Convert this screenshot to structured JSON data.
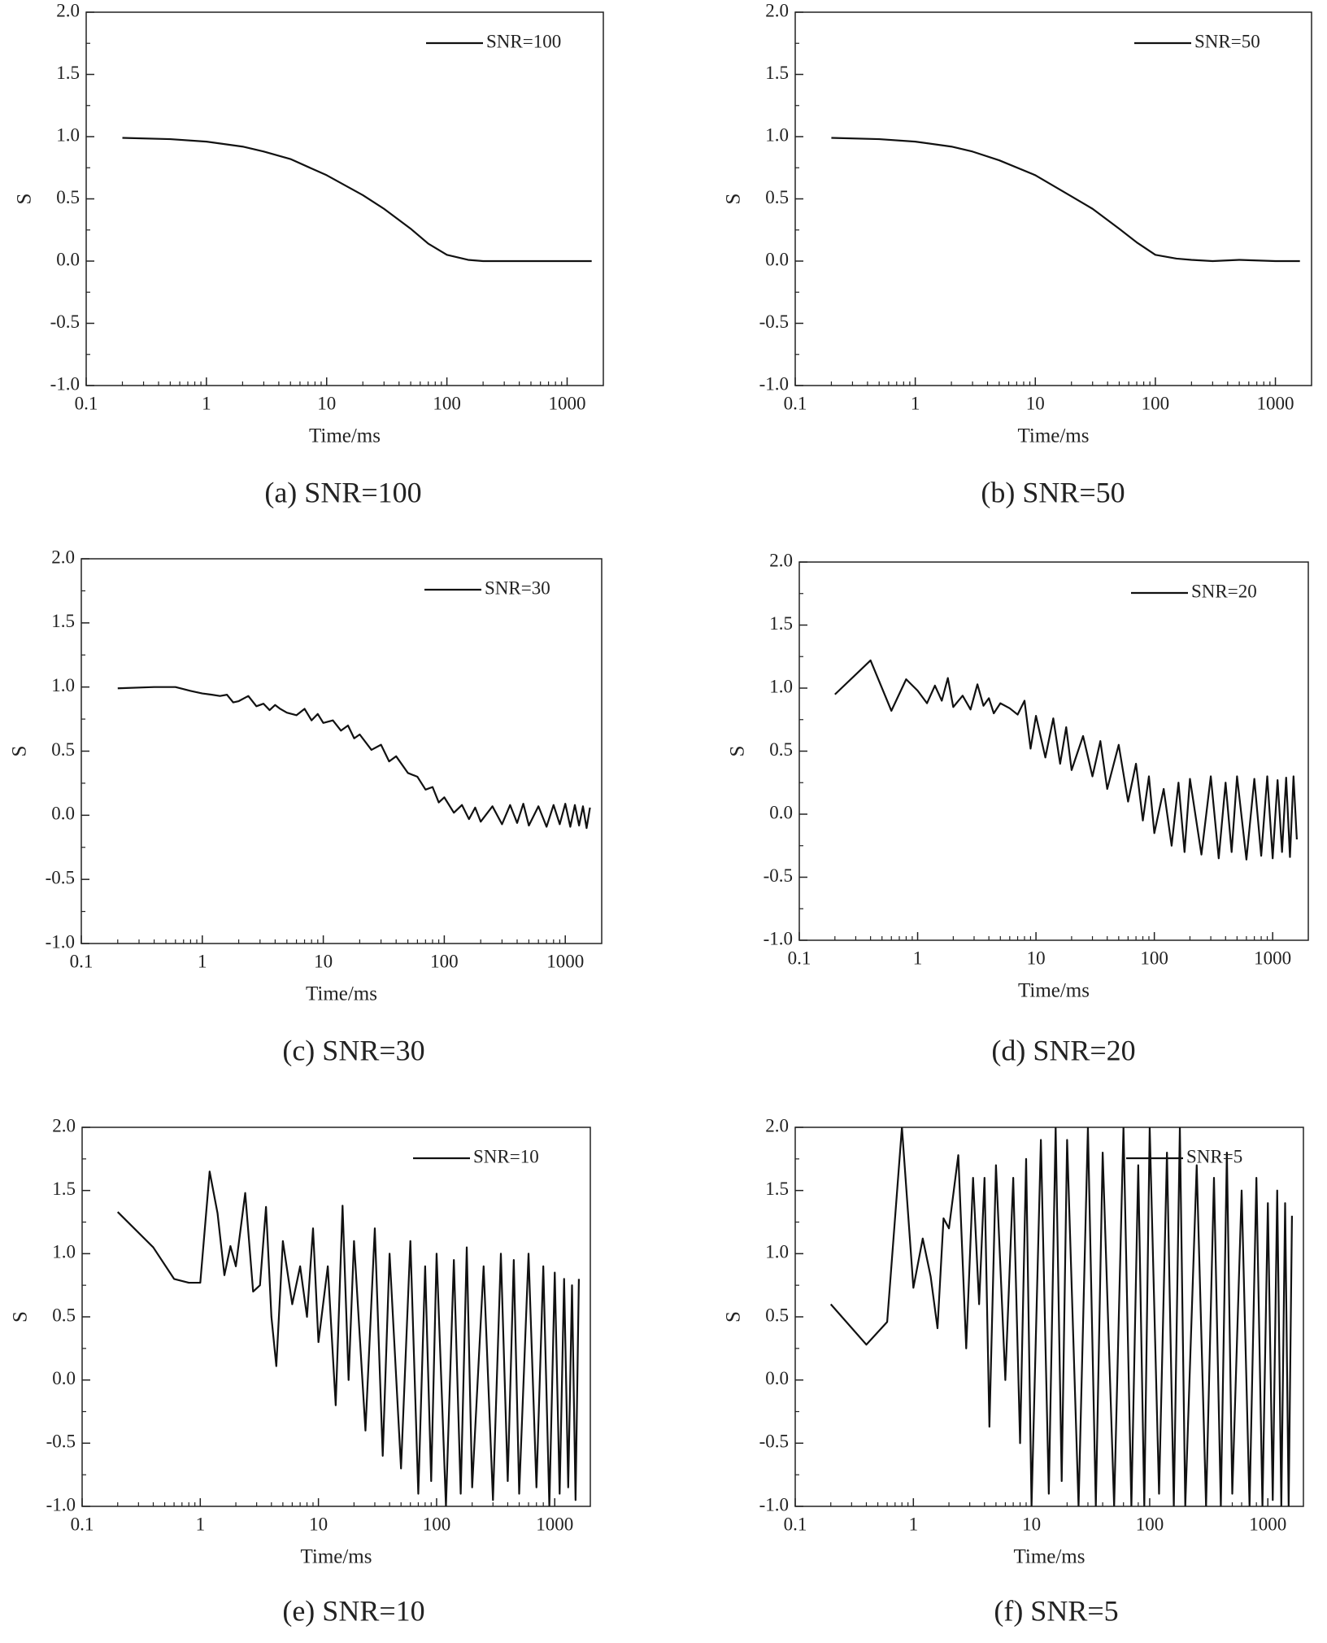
{
  "chart_data": [
    {
      "type": "line",
      "caption": "(a) SNR=100",
      "xlabel": "Time/ms",
      "ylabel": "S",
      "log_x": true,
      "legend": "upper right",
      "xlim": [
        0.1,
        2000
      ],
      "xticks": [
        0.1,
        1,
        10,
        100,
        1000
      ],
      "ylim": [
        -1,
        2
      ],
      "yticks": [
        {
          "value": -1,
          "label": "-1.0"
        },
        {
          "value": -0.5,
          "label": "-0.5"
        },
        {
          "value": 0,
          "label": "0.0"
        },
        {
          "value": 0.5,
          "label": "0.5"
        },
        {
          "value": 1,
          "label": "1.0"
        },
        {
          "value": 1.5,
          "label": "1.5"
        },
        {
          "value": 2,
          "label": "2.0"
        }
      ],
      "x": [
        0.2,
        0.5,
        1,
        2,
        3,
        5,
        10,
        20,
        30,
        50,
        70,
        100,
        150,
        200,
        300,
        500,
        1000,
        1600
      ],
      "series": [
        {
          "name": "SNR=100",
          "color": "#111111",
          "values": [
            0.99,
            0.98,
            0.96,
            0.92,
            0.88,
            0.82,
            0.69,
            0.53,
            0.42,
            0.26,
            0.14,
            0.05,
            0.01,
            0,
            0,
            0,
            0,
            0
          ]
        }
      ]
    },
    {
      "type": "line",
      "caption": "(b) SNR=50",
      "xlabel": "Time/ms",
      "ylabel": "S",
      "log_x": true,
      "legend": "upper right",
      "xlim": [
        0.1,
        2000
      ],
      "xticks": [
        0.1,
        1,
        10,
        100,
        1000
      ],
      "ylim": [
        -1,
        2
      ],
      "yticks": [
        {
          "value": -1,
          "label": "-1.0"
        },
        {
          "value": -0.5,
          "label": "-0.5"
        },
        {
          "value": 0,
          "label": "0.0"
        },
        {
          "value": 0.5,
          "label": "0.5"
        },
        {
          "value": 1,
          "label": "1.0"
        },
        {
          "value": 1.5,
          "label": "1.5"
        },
        {
          "value": 2,
          "label": "2.0"
        }
      ],
      "x": [
        0.2,
        0.5,
        1,
        2,
        3,
        5,
        10,
        20,
        30,
        50,
        70,
        100,
        150,
        200,
        300,
        500,
        1000,
        1600
      ],
      "series": [
        {
          "name": "SNR=50",
          "color": "#111111",
          "values": [
            0.99,
            0.98,
            0.96,
            0.92,
            0.88,
            0.81,
            0.69,
            0.52,
            0.42,
            0.26,
            0.15,
            0.05,
            0.02,
            0.01,
            0,
            0.01,
            0,
            0
          ]
        }
      ]
    },
    {
      "type": "line",
      "caption": "(c) SNR=30",
      "xlabel": "Time/ms",
      "ylabel": "S",
      "log_x": true,
      "legend": "upper right",
      "xlim": [
        0.1,
        2000
      ],
      "xticks": [
        0.1,
        1,
        10,
        100,
        1000
      ],
      "ylim": [
        -1,
        2
      ],
      "yticks": [
        {
          "value": -1,
          "label": "-1.0"
        },
        {
          "value": -0.5,
          "label": "-0.5"
        },
        {
          "value": 0,
          "label": "0.0"
        },
        {
          "value": 0.5,
          "label": "0.5"
        },
        {
          "value": 1,
          "label": "1.0"
        },
        {
          "value": 1.5,
          "label": "1.5"
        },
        {
          "value": 2,
          "label": "2.0"
        }
      ],
      "x": [
        0.2,
        0.4,
        0.6,
        0.8,
        1,
        1.2,
        1.4,
        1.6,
        1.8,
        2,
        2.4,
        2.8,
        3.2,
        3.6,
        4,
        4.4,
        5,
        6,
        7,
        8,
        9,
        10,
        12,
        14,
        16,
        18,
        20,
        25,
        30,
        35,
        40,
        50,
        60,
        70,
        80,
        90,
        100,
        120,
        140,
        160,
        180,
        200,
        250,
        300,
        350,
        400,
        450,
        500,
        600,
        700,
        800,
        900,
        1000,
        1100,
        1200,
        1300,
        1400,
        1500,
        1600
      ],
      "series": [
        {
          "name": "SNR=30",
          "color": "#111111",
          "values": [
            0.99,
            1.0,
            1.0,
            0.97,
            0.95,
            0.94,
            0.93,
            0.94,
            0.88,
            0.89,
            0.93,
            0.85,
            0.87,
            0.82,
            0.86,
            0.83,
            0.8,
            0.78,
            0.83,
            0.74,
            0.79,
            0.72,
            0.74,
            0.66,
            0.7,
            0.6,
            0.63,
            0.51,
            0.55,
            0.42,
            0.46,
            0.33,
            0.3,
            0.2,
            0.22,
            0.1,
            0.14,
            0.02,
            0.08,
            -0.03,
            0.06,
            -0.05,
            0.07,
            -0.07,
            0.08,
            -0.06,
            0.09,
            -0.08,
            0.07,
            -0.09,
            0.08,
            -0.07,
            0.09,
            -0.09,
            0.08,
            -0.08,
            0.07,
            -0.1,
            0.06
          ]
        }
      ]
    },
    {
      "type": "line",
      "caption": "(d) SNR=20",
      "xlabel": "Time/ms",
      "ylabel": "S",
      "log_x": true,
      "legend": "upper right",
      "xlim": [
        0.1,
        2000
      ],
      "xticks": [
        0.1,
        1,
        10,
        100,
        1000
      ],
      "ylim": [
        -1,
        2
      ],
      "yticks": [
        {
          "value": -1,
          "label": "-1.0"
        },
        {
          "value": -0.5,
          "label": "-0.5"
        },
        {
          "value": 0,
          "label": "0.0"
        },
        {
          "value": 0.5,
          "label": "0.5"
        },
        {
          "value": 1,
          "label": "1.0"
        },
        {
          "value": 1.5,
          "label": "1.5"
        },
        {
          "value": 2,
          "label": "2.0"
        }
      ],
      "x": [
        0.2,
        0.4,
        0.6,
        0.8,
        1,
        1.2,
        1.4,
        1.6,
        1.8,
        2,
        2.4,
        2.8,
        3.2,
        3.6,
        4,
        4.4,
        5,
        6,
        7,
        8,
        9,
        10,
        12,
        14,
        16,
        18,
        20,
        25,
        30,
        35,
        40,
        50,
        60,
        70,
        80,
        90,
        100,
        120,
        140,
        160,
        180,
        200,
        250,
        300,
        350,
        400,
        450,
        500,
        600,
        700,
        800,
        900,
        1000,
        1100,
        1200,
        1300,
        1400,
        1500,
        1600
      ],
      "series": [
        {
          "name": "SNR=20",
          "color": "#111111",
          "values": [
            0.95,
            1.22,
            0.82,
            1.07,
            0.98,
            0.88,
            1.02,
            0.9,
            1.08,
            0.85,
            0.94,
            0.83,
            1.03,
            0.86,
            0.92,
            0.8,
            0.88,
            0.84,
            0.79,
            0.9,
            0.52,
            0.78,
            0.45,
            0.76,
            0.4,
            0.69,
            0.35,
            0.62,
            0.3,
            0.58,
            0.2,
            0.55,
            0.1,
            0.4,
            -0.05,
            0.3,
            -0.15,
            0.2,
            -0.25,
            0.25,
            -0.3,
            0.28,
            -0.32,
            0.3,
            -0.35,
            0.25,
            -0.3,
            0.3,
            -0.36,
            0.28,
            -0.33,
            0.3,
            -0.35,
            0.27,
            -0.3,
            0.29,
            -0.34,
            0.3,
            -0.2
          ]
        }
      ]
    },
    {
      "type": "line",
      "caption": "(e) SNR=10",
      "xlabel": "Time/ms",
      "ylabel": "S",
      "log_x": true,
      "legend": "upper right",
      "xlim": [
        0.1,
        2000
      ],
      "xticks": [
        0.1,
        1,
        10,
        100,
        1000
      ],
      "ylim": [
        -1,
        2
      ],
      "yticks": [
        {
          "value": -1,
          "label": "-1.0"
        },
        {
          "value": -0.5,
          "label": "-0.5"
        },
        {
          "value": 0,
          "label": "0.0"
        },
        {
          "value": 0.5,
          "label": "0.5"
        },
        {
          "value": 1,
          "label": "1.0"
        },
        {
          "value": 1.5,
          "label": "1.5"
        },
        {
          "value": 2,
          "label": "2.0"
        }
      ],
      "x": [
        0.2,
        0.4,
        0.6,
        0.8,
        1,
        1.2,
        1.4,
        1.6,
        1.8,
        2,
        2.4,
        2.8,
        3.2,
        3.6,
        4,
        4.4,
        5,
        6,
        7,
        8,
        9,
        10,
        12,
        14,
        16,
        18,
        20,
        25,
        30,
        35,
        40,
        50,
        60,
        70,
        80,
        90,
        100,
        120,
        140,
        160,
        180,
        200,
        250,
        300,
        350,
        400,
        450,
        500,
        600,
        700,
        800,
        900,
        1000,
        1100,
        1200,
        1300,
        1400,
        1500,
        1600
      ],
      "series": [
        {
          "name": "SNR=10",
          "color": "#111111",
          "values": [
            1.33,
            1.05,
            0.8,
            0.77,
            0.77,
            1.65,
            1.32,
            0.83,
            1.06,
            0.9,
            1.48,
            0.7,
            0.75,
            1.37,
            0.5,
            0.11,
            1.1,
            0.6,
            0.9,
            0.5,
            1.2,
            0.3,
            0.9,
            -0.2,
            1.38,
            0.0,
            1.1,
            -0.4,
            1.2,
            -0.6,
            1.0,
            -0.7,
            1.1,
            -0.9,
            0.9,
            -0.8,
            1.0,
            -1.0,
            0.95,
            -0.9,
            1.05,
            -0.85,
            0.9,
            -0.95,
            1.0,
            -0.8,
            0.95,
            -0.9,
            1.0,
            -0.85,
            0.9,
            -1.0,
            0.85,
            -0.9,
            0.8,
            -0.85,
            0.75,
            -0.95,
            0.8
          ]
        }
      ]
    },
    {
      "type": "line",
      "caption": "(f) SNR=5",
      "xlabel": "Time/ms",
      "ylabel": "S",
      "log_x": true,
      "legend": "upper right",
      "xlim": [
        0.1,
        2000
      ],
      "xticks": [
        0.1,
        1,
        10,
        100,
        1000
      ],
      "ylim": [
        -1,
        2
      ],
      "yticks": [
        {
          "value": -1,
          "label": "-1.0"
        },
        {
          "value": -0.5,
          "label": "-0.5"
        },
        {
          "value": 0,
          "label": "0.0"
        },
        {
          "value": 0.5,
          "label": "0.5"
        },
        {
          "value": 1,
          "label": "1.0"
        },
        {
          "value": 1.5,
          "label": "1.5"
        },
        {
          "value": 2,
          "label": "2.0"
        }
      ],
      "x": [
        0.2,
        0.4,
        0.6,
        0.8,
        1,
        1.2,
        1.4,
        1.6,
        1.8,
        2,
        2.4,
        2.8,
        3.2,
        3.6,
        4,
        4.4,
        5,
        6,
        7,
        8,
        9,
        10,
        12,
        14,
        16,
        18,
        20,
        25,
        30,
        35,
        40,
        50,
        60,
        70,
        80,
        90,
        100,
        120,
        140,
        160,
        180,
        200,
        250,
        300,
        350,
        400,
        450,
        500,
        600,
        700,
        800,
        900,
        1000,
        1100,
        1200,
        1300,
        1400,
        1500,
        1600
      ],
      "series": [
        {
          "name": "SNR=5",
          "color": "#111111",
          "values": [
            0.6,
            0.28,
            0.46,
            2.0,
            0.73,
            1.12,
            0.82,
            0.41,
            1.28,
            1.2,
            1.78,
            0.25,
            1.6,
            0.6,
            1.6,
            -0.37,
            1.7,
            0.0,
            1.6,
            -0.5,
            1.75,
            -1.0,
            1.9,
            -0.9,
            2.0,
            -0.8,
            1.9,
            -1.0,
            2.0,
            -1.0,
            1.8,
            -1.0,
            2.0,
            -1.0,
            1.7,
            -1.0,
            2.0,
            -0.9,
            1.8,
            -1.0,
            2.0,
            -1.0,
            1.7,
            -1.0,
            1.6,
            -1.0,
            1.8,
            -0.9,
            1.5,
            -1.0,
            1.6,
            -1.0,
            1.4,
            -0.95,
            1.5,
            -1.0,
            1.4,
            -1.0,
            1.3
          ]
        }
      ]
    }
  ]
}
